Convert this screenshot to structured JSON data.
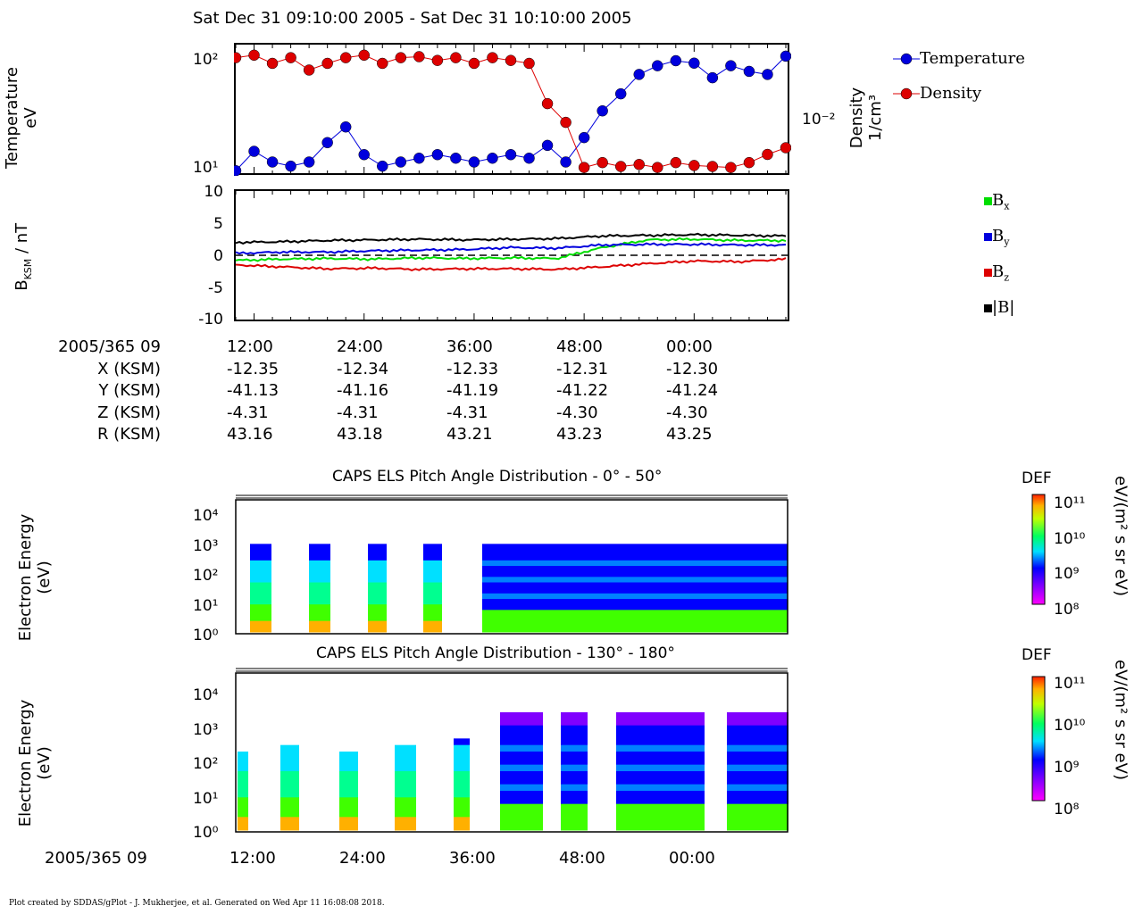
{
  "header": {
    "title": "Sat Dec 31 09:10:00 2005 - Sat Dec 31 10:10:00 2005"
  },
  "panel1": {
    "ylabel": [
      "Temperature",
      "eV"
    ],
    "right_label": [
      "Density",
      "1/cm³"
    ],
    "left_ticks": [
      "10²",
      "10¹"
    ],
    "right_tick": "10⁻²",
    "legend": [
      "Temperature",
      "Density"
    ],
    "colors": {
      "temperature": "#0000dd",
      "density": "#dd0000"
    }
  },
  "panel2": {
    "ylabel": "B",
    "ylabel_sub": "KSM",
    "ylabel_unit": " / nT",
    "ticks": [
      "10",
      "5",
      "0",
      "-5",
      "-10"
    ],
    "legend": [
      {
        "name": "B",
        "sub": "x",
        "color": "#00dd00"
      },
      {
        "name": "B",
        "sub": "y",
        "color": "#0000dd"
      },
      {
        "name": "B",
        "sub": "z",
        "color": "#dd0000"
      },
      {
        "name": "|B|",
        "sub": "",
        "color": "#000000"
      }
    ]
  },
  "ephemeris": {
    "row_labels": [
      "2005/365 09",
      "X (KSM)",
      "Y (KSM)",
      "Z (KSM)",
      "R (KSM)"
    ],
    "columns": [
      [
        "12:00",
        "-12.35",
        "-41.13",
        "-4.31",
        "43.16"
      ],
      [
        "24:00",
        "-12.34",
        "-41.16",
        "-4.31",
        "43.18"
      ],
      [
        "36:00",
        "-12.33",
        "-41.19",
        "-4.31",
        "43.21"
      ],
      [
        "48:00",
        "-12.31",
        "-41.22",
        "-4.30",
        "43.23"
      ],
      [
        "00:00",
        "-12.30",
        "-41.24",
        "-4.30",
        "43.25"
      ]
    ]
  },
  "spectrogram1": {
    "title": "CAPS ELS Pitch Angle Distribution - 0° - 50°",
    "ylabel": [
      "Electron Energy",
      "(eV)"
    ],
    "yticks": [
      "10⁴",
      "10³",
      "10²",
      "10¹",
      "10⁰"
    ],
    "colorbar_title": "DEF",
    "colorbar_ticks": [
      "10¹¹",
      "10¹⁰",
      "10⁹",
      "10⁸"
    ],
    "colorbar_unit": "eV/(m² s sr eV)"
  },
  "spectrogram2": {
    "title": "CAPS ELS Pitch Angle Distribution - 130° - 180°",
    "ylabel": [
      "Electron Energy",
      "(eV)"
    ],
    "yticks": [
      "10⁴",
      "10³",
      "10²",
      "10¹",
      "10⁰"
    ],
    "colorbar_title": "DEF",
    "colorbar_ticks": [
      "10¹¹",
      "10¹⁰",
      "10⁹",
      "10⁸"
    ],
    "colorbar_unit": "eV/(m² s sr eV)"
  },
  "bottom_axis": {
    "date_label": "2005/365 09",
    "ticks": [
      "12:00",
      "24:00",
      "36:00",
      "48:00",
      "00:00"
    ]
  },
  "footer": {
    "text": "Plot created by SDDAS/gPlot - J. Mukherjee, et al.  Generated on Wed Apr 11 16:08:08 2018."
  },
  "chart_data": [
    {
      "type": "scatter",
      "series": [
        {
          "name": "Temperature",
          "x_minutes": [
            0,
            2,
            4,
            6,
            8,
            10,
            12,
            14,
            16,
            18,
            20,
            22,
            24,
            26,
            28,
            30,
            32,
            34,
            36,
            38,
            40,
            42,
            44,
            46,
            48,
            50,
            52,
            54,
            56,
            58,
            60
          ],
          "values": [
            10,
            15,
            12,
            11,
            12,
            18,
            25,
            14,
            11,
            12,
            13,
            14,
            13,
            12,
            13,
            14,
            13,
            17,
            12,
            20,
            35,
            50,
            75,
            90,
            100,
            95,
            70,
            90,
            80,
            75,
            110
          ]
        },
        {
          "name": "Density",
          "x_minutes": [
            0,
            2,
            4,
            6,
            8,
            10,
            12,
            14,
            16,
            18,
            20,
            22,
            24,
            26,
            28,
            30,
            32,
            34,
            36,
            38,
            40,
            42,
            44,
            46,
            48,
            50,
            52,
            54,
            56,
            58,
            60
          ],
          "values": [
            0.07,
            0.075,
            0.06,
            0.07,
            0.05,
            0.06,
            0.07,
            0.075,
            0.06,
            0.07,
            0.072,
            0.065,
            0.07,
            0.06,
            0.07,
            0.065,
            0.06,
            0.02,
            0.012,
            0.0035,
            0.004,
            0.0036,
            0.0038,
            0.0035,
            0.004,
            0.0037,
            0.0036,
            0.0035,
            0.004,
            0.005,
            0.006
          ]
        }
      ]
    },
    {
      "type": "line",
      "ylabel": "B_KSM / nT",
      "ylim": [
        -10,
        10
      ],
      "x_minutes": [
        0,
        5,
        10,
        15,
        20,
        25,
        30,
        35,
        40,
        45,
        50,
        55,
        60
      ],
      "series": [
        {
          "name": "Bx",
          "values": [
            -0.8,
            -0.6,
            -0.5,
            -0.6,
            -0.4,
            -0.5,
            -0.4,
            -0.5,
            1.2,
            2.4,
            2.5,
            2.3,
            2.3
          ]
        },
        {
          "name": "By",
          "values": [
            0.3,
            0.5,
            0.5,
            0.7,
            0.8,
            0.9,
            1.2,
            1.1,
            1.6,
            1.7,
            1.7,
            1.6,
            1.6
          ]
        },
        {
          "name": "Bz",
          "values": [
            -1.5,
            -1.8,
            -2.1,
            -2.0,
            -2.2,
            -2.1,
            -2.1,
            -2.2,
            -1.8,
            -1.3,
            -0.9,
            -1.0,
            -0.6
          ]
        },
        {
          "name": "|B|",
          "values": [
            2.0,
            2.1,
            2.3,
            2.4,
            2.5,
            2.4,
            2.5,
            2.6,
            3.0,
            3.1,
            3.2,
            3.1,
            3.0
          ]
        }
      ]
    },
    {
      "type": "heatmap",
      "title": "CAPS ELS Pitch Angle Distribution - 0° - 50°",
      "ylabel": "Electron Energy (eV)",
      "zlabel": "DEF eV/(m² s sr eV)",
      "zlim": [
        100000000.0,
        100000000000.0
      ]
    },
    {
      "type": "heatmap",
      "title": "CAPS ELS Pitch Angle Distribution - 130° - 180°",
      "ylabel": "Electron Energy (eV)",
      "zlabel": "DEF eV/(m² s sr eV)",
      "zlim": [
        100000000.0,
        100000000000.0
      ]
    }
  ]
}
